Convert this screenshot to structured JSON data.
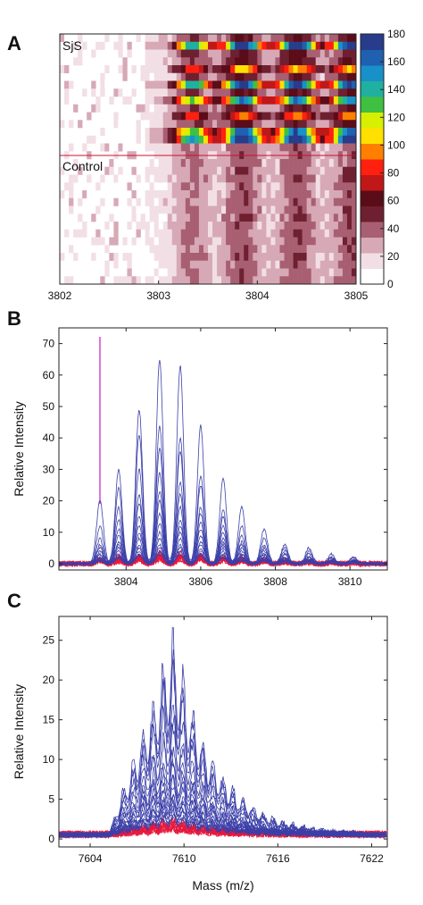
{
  "colors": {
    "sjs_series": "#3b3fa8",
    "control_series": "#e8183c",
    "marker_line": "#c020c0",
    "separator_line": "#c8102e"
  },
  "colormap": [
    "#ffffff",
    "#f2dfe5",
    "#d7a9b6",
    "#a85f72",
    "#6e2030",
    "#5a0c18",
    "#c01818",
    "#ff2010",
    "#ff8000",
    "#ffe000",
    "#d8f000",
    "#40c040",
    "#20b0a0",
    "#1890c8",
    "#2060b0",
    "#283c8c"
  ],
  "chart_data": [
    {
      "panel": "A",
      "type": "heatmap",
      "x_range": [
        3802,
        3805
      ],
      "x_ticks": [
        "3802",
        "3803",
        "3804",
        "3805"
      ],
      "group_labels": [
        "SjS",
        "Control"
      ],
      "sjs_rows": 14,
      "control_rows": 18,
      "color_range": [
        0,
        180
      ],
      "colorbar_ticks": [
        "0",
        "20",
        "40",
        "60",
        "80",
        "100",
        "120",
        "140",
        "160",
        "180"
      ]
    },
    {
      "panel": "B",
      "type": "line",
      "xlim": [
        3802.2,
        3811
      ],
      "ylim": [
        -2,
        75
      ],
      "x_ticks": [
        "3804",
        "3806",
        "3808",
        "3810"
      ],
      "y_ticks": [
        "0",
        "10",
        "20",
        "30",
        "40",
        "50",
        "60",
        "70"
      ],
      "ylabel": "Relative Intensity",
      "xlabel": "",
      "marker_x": 3803.3,
      "peak_centers": [
        3803.3,
        3803.8,
        3804.35,
        3804.9,
        3805.45,
        3806.0,
        3806.6,
        3807.1,
        3807.7,
        3808.25,
        3808.9,
        3809.5,
        3810.1
      ],
      "sjs_peak_heights": [
        [
          20,
          30,
          49,
          65,
          63,
          44,
          27,
          18,
          11,
          6,
          5,
          3,
          2
        ],
        [
          12,
          24,
          41,
          44,
          40,
          28,
          17,
          12,
          8,
          5,
          4,
          2,
          2
        ],
        [
          8,
          18,
          30,
          37,
          36,
          25,
          15,
          9,
          6,
          4,
          3,
          2,
          1
        ],
        [
          6,
          14,
          22,
          29,
          26,
          18,
          12,
          7,
          5,
          3,
          2,
          2,
          1
        ],
        [
          5,
          11,
          19,
          23,
          22,
          16,
          10,
          6,
          4,
          3,
          2,
          1,
          1
        ],
        [
          4,
          9,
          15,
          20,
          18,
          13,
          8,
          5,
          3,
          2,
          2,
          1,
          1
        ],
        [
          3,
          7,
          12,
          16,
          14,
          11,
          7,
          4,
          3,
          2,
          1,
          1,
          1
        ],
        [
          3,
          6,
          10,
          13,
          12,
          9,
          6,
          3,
          2,
          2,
          1,
          1,
          0.5
        ],
        [
          2,
          5,
          8,
          10,
          10,
          7,
          5,
          3,
          2,
          1,
          1,
          1,
          0.5
        ],
        [
          2,
          4,
          6,
          8,
          8,
          6,
          4,
          2,
          2,
          1,
          1,
          0.5,
          0.5
        ],
        [
          1.5,
          3,
          5,
          6,
          6,
          5,
          3,
          2,
          1,
          1,
          1,
          0.5,
          0.5
        ],
        [
          1,
          2,
          4,
          5,
          5,
          4,
          3,
          2,
          1,
          1,
          0.5,
          0.5,
          0.5
        ],
        [
          1,
          2,
          3,
          4,
          4,
          3,
          2,
          1,
          1,
          1,
          0.5,
          0.5,
          0.5
        ],
        [
          1,
          2,
          2.5,
          3,
          3,
          2.5,
          2,
          1,
          1,
          0.5,
          0.5,
          0.5,
          0.3
        ]
      ],
      "control_peak_heights": [
        [
          1.5,
          2,
          2.5,
          3,
          3,
          2.5,
          2,
          1.5,
          1,
          1,
          0.8,
          0.5,
          0.5
        ],
        [
          1,
          1.5,
          2,
          2.5,
          2.5,
          2,
          1.5,
          1,
          1,
          0.8,
          0.5,
          0.5,
          0.3
        ],
        [
          1,
          1,
          1.5,
          2,
          2,
          1.5,
          1,
          1,
          0.8,
          0.5,
          0.5,
          0.3,
          0.3
        ],
        [
          0.8,
          1,
          1.2,
          1.5,
          1.5,
          1.2,
          1,
          0.8,
          0.5,
          0.5,
          0.3,
          0.3,
          0.2
        ]
      ]
    },
    {
      "panel": "C",
      "type": "line",
      "xlim": [
        7602,
        7623
      ],
      "ylim": [
        -1,
        28
      ],
      "x_ticks": [
        "7604",
        "7610",
        "7616",
        "7622"
      ],
      "y_ticks": [
        "0",
        "5",
        "10",
        "15",
        "20",
        "25"
      ],
      "ylabel": "Relative Intensity",
      "xlabel": "Mass (m/z)",
      "envelope": {
        "start": 7605.2,
        "peak": 7609.3,
        "end": 7621.5
      },
      "sjs_peak_heights": [
        27.5,
        25,
        23,
        20.5,
        17,
        15,
        12.5,
        11,
        10,
        9,
        8,
        7,
        6,
        5.5,
        5,
        4.5,
        4,
        3.5,
        3,
        2.5
      ],
      "control_peak_heights": [
        2.2,
        1.8,
        1.5,
        1.2,
        1.0,
        0.8
      ]
    }
  ]
}
